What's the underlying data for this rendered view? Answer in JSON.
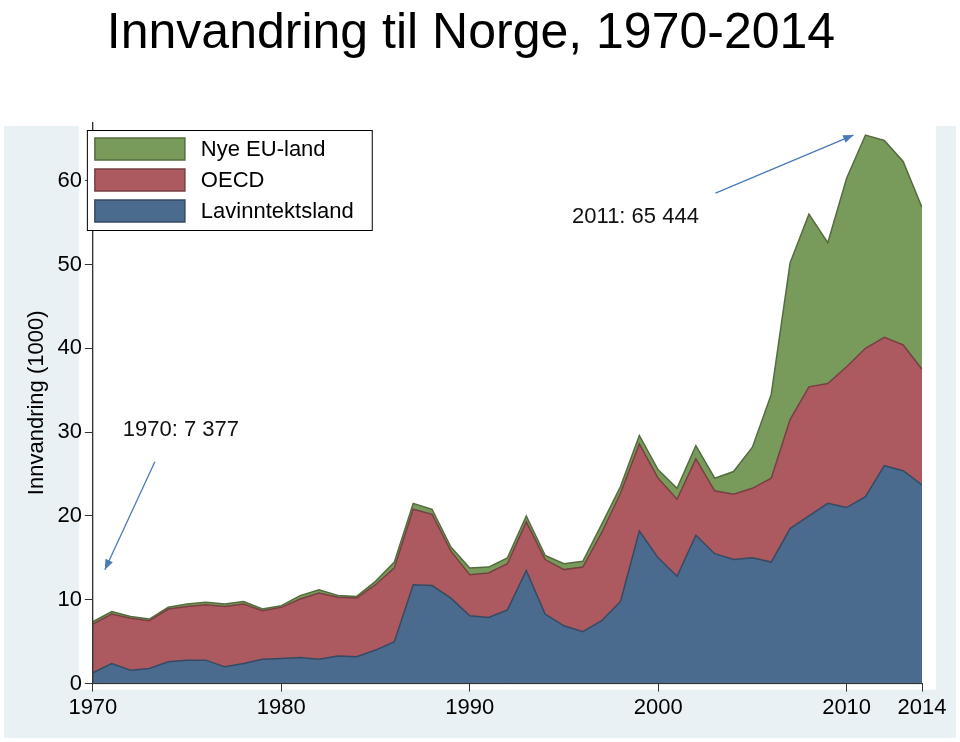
{
  "chart_data": {
    "type": "area",
    "title": "Innvandring til Norge, 1970-2014",
    "y_label": "Innvandring (1000)",
    "stacked": true,
    "grid": false,
    "legend": "upper left",
    "x": [
      1970,
      1971,
      1972,
      1973,
      1974,
      1975,
      1976,
      1977,
      1978,
      1979,
      1980,
      1981,
      1982,
      1983,
      1984,
      1985,
      1986,
      1987,
      1988,
      1989,
      1990,
      1991,
      1992,
      1993,
      1994,
      1995,
      1996,
      1997,
      1998,
      1999,
      2000,
      2001,
      2002,
      2003,
      2004,
      2005,
      2006,
      2007,
      2008,
      2009,
      2010,
      2011,
      2012,
      2013,
      2014
    ],
    "xlim": [
      1970,
      2014
    ],
    "xticks": [
      1970,
      1980,
      1990,
      2000,
      2010,
      2014
    ],
    "ylim": [
      0,
      67
    ],
    "yticks": [
      0,
      10,
      20,
      30,
      40,
      50,
      60
    ],
    "series": [
      {
        "name": "Nye EU-land",
        "color": "#789a5a",
        "values": [
          0.277,
          0.3,
          0.2,
          0.2,
          0.2,
          0.3,
          0.3,
          0.3,
          0.3,
          0.2,
          0.2,
          0.4,
          0.4,
          0.2,
          0.2,
          0.4,
          0.7,
          0.7,
          0.6,
          0.5,
          0.8,
          0.7,
          0.7,
          0.7,
          0.5,
          0.7,
          0.7,
          1.0,
          0.8,
          1.0,
          1.0,
          1.3,
          1.6,
          1.5,
          2.7,
          4.9,
          10.0,
          18.7,
          20.6,
          16.8,
          22.5,
          25.444,
          23.5,
          21.9,
          19.3
        ]
      },
      {
        "name": "OECD",
        "color": "#ac5a60",
        "values": [
          5.8,
          5.9,
          6.2,
          5.7,
          6.3,
          6.4,
          6.6,
          7.2,
          7.1,
          5.8,
          6.1,
          7.0,
          7.9,
          7.0,
          7.0,
          7.8,
          8.8,
          9.0,
          8.5,
          5.6,
          4.9,
          5.3,
          5.5,
          5.8,
          6.5,
          6.7,
          7.7,
          10.5,
          12.9,
          10.4,
          9.5,
          9.2,
          9.1,
          7.5,
          7.8,
          8.3,
          10.0,
          13.0,
          15.4,
          14.3,
          16.8,
          17.7,
          15.3,
          15.0,
          13.8
        ]
      },
      {
        "name": "Lavinntektsland",
        "color": "#4a6a8e",
        "values": [
          1.3,
          2.4,
          1.6,
          1.8,
          2.6,
          2.8,
          2.8,
          2.0,
          2.4,
          2.9,
          3.0,
          3.1,
          2.9,
          3.3,
          3.2,
          4.0,
          5.0,
          11.8,
          11.7,
          10.2,
          8.1,
          7.9,
          8.8,
          13.5,
          8.3,
          6.9,
          6.2,
          7.5,
          9.8,
          18.2,
          15.0,
          12.8,
          17.7,
          15.5,
          14.8,
          15.0,
          14.5,
          18.5,
          20.0,
          21.5,
          21.0,
          22.3,
          26.0,
          25.4,
          23.7
        ]
      }
    ],
    "annotations": [
      {
        "text": "2011: 65 444",
        "x": 2011,
        "y": 65.444
      },
      {
        "text": "1970: 7 377",
        "x": 1970,
        "y": 7.377
      }
    ]
  }
}
